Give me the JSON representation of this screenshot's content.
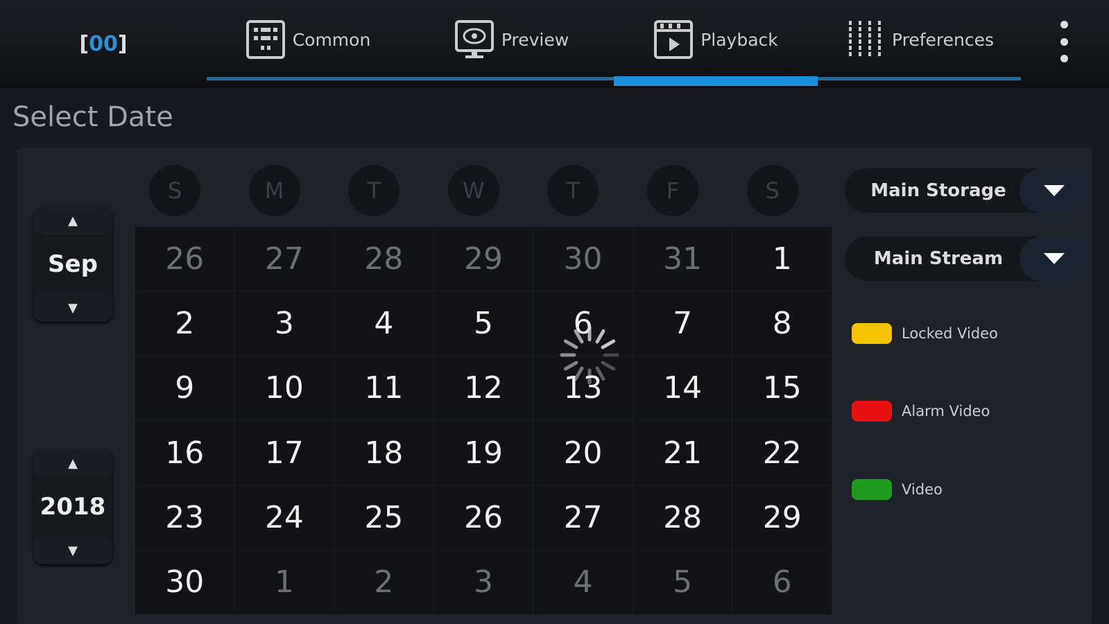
{
  "header": {
    "logo_left": "[",
    "logo_mid": "00",
    "logo_right": "]",
    "tabs": [
      {
        "label": "Common",
        "icon": "grid-icon"
      },
      {
        "label": "Preview",
        "icon": "monitor-eye-icon"
      },
      {
        "label": "Playback",
        "icon": "clapperboard-play-icon"
      },
      {
        "label": "Preferences",
        "icon": "sliders-icon"
      }
    ],
    "active_tab": "Playback",
    "menu_icon": "more-vertical-icon"
  },
  "title": "Select Date",
  "month": {
    "value": "Sep",
    "up": "▲",
    "down": "▼"
  },
  "year": {
    "value": "2018",
    "up": "▲",
    "down": "▼"
  },
  "weekdays": [
    "S",
    "M",
    "T",
    "W",
    "T",
    "F",
    "S"
  ],
  "days": [
    {
      "d": "26",
      "o": true
    },
    {
      "d": "27",
      "o": true
    },
    {
      "d": "28",
      "o": true
    },
    {
      "d": "29",
      "o": true
    },
    {
      "d": "30",
      "o": true
    },
    {
      "d": "31",
      "o": true
    },
    {
      "d": "1"
    },
    {
      "d": "2"
    },
    {
      "d": "3"
    },
    {
      "d": "4"
    },
    {
      "d": "5"
    },
    {
      "d": "6"
    },
    {
      "d": "7"
    },
    {
      "d": "8"
    },
    {
      "d": "9"
    },
    {
      "d": "10"
    },
    {
      "d": "11"
    },
    {
      "d": "12"
    },
    {
      "d": "13"
    },
    {
      "d": "14"
    },
    {
      "d": "15"
    },
    {
      "d": "16"
    },
    {
      "d": "17"
    },
    {
      "d": "18"
    },
    {
      "d": "19"
    },
    {
      "d": "20"
    },
    {
      "d": "21"
    },
    {
      "d": "22"
    },
    {
      "d": "23"
    },
    {
      "d": "24"
    },
    {
      "d": "25"
    },
    {
      "d": "26"
    },
    {
      "d": "27"
    },
    {
      "d": "28"
    },
    {
      "d": "29"
    },
    {
      "d": "30"
    },
    {
      "d": "1",
      "o": true
    },
    {
      "d": "2",
      "o": true
    },
    {
      "d": "3",
      "o": true
    },
    {
      "d": "4",
      "o": true
    },
    {
      "d": "5",
      "o": true
    },
    {
      "d": "6",
      "o": true
    }
  ],
  "storage": {
    "value": "Main Storage"
  },
  "stream": {
    "value": "Main Stream"
  },
  "legend": [
    {
      "label": "Locked Video",
      "color": "#f5c400"
    },
    {
      "label": "Alarm Video",
      "color": "#e81010"
    },
    {
      "label": "Video",
      "color": "#1e9a1e"
    }
  ],
  "colors": {
    "accent": "#1a8fe0"
  }
}
